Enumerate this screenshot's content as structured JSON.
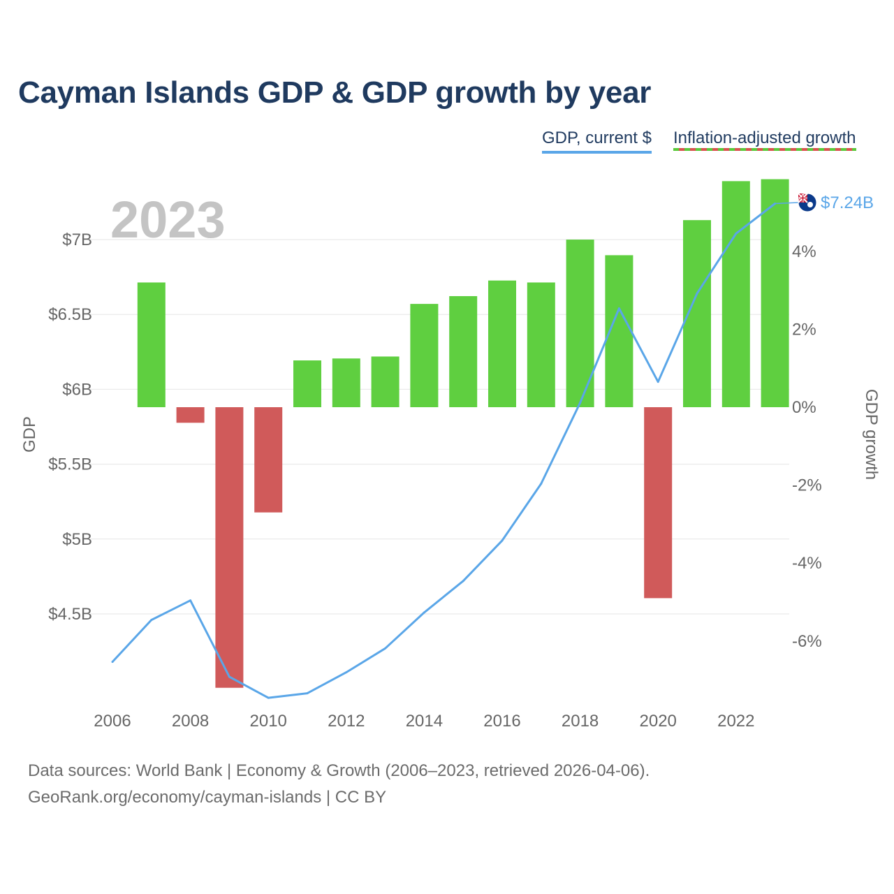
{
  "title": "Cayman Islands GDP & GDP growth by year",
  "legend": {
    "gdp": "GDP, current $",
    "growth": "Inflation-adjusted growth"
  },
  "colors": {
    "gdp_line": "#5aa6e8",
    "growth_positive": "#5fcf40",
    "growth_negative": "#d05a5a",
    "title": "#1f3a5f",
    "grid": "#e6e6e6",
    "year_watermark": "#c4c4c4"
  },
  "chart_data": {
    "type": "bar+line",
    "highlight_year": "2023",
    "years": [
      2006,
      2007,
      2008,
      2009,
      2010,
      2011,
      2012,
      2013,
      2014,
      2015,
      2016,
      2017,
      2018,
      2019,
      2020,
      2021,
      2022,
      2023
    ],
    "gdp_billions": [
      4.18,
      4.46,
      4.59,
      4.08,
      3.94,
      3.97,
      4.11,
      4.27,
      4.51,
      4.72,
      4.99,
      5.37,
      5.91,
      6.54,
      6.05,
      6.64,
      7.04,
      7.24
    ],
    "growth_percent": [
      null,
      3.2,
      -0.4,
      -7.2,
      -2.7,
      1.2,
      1.25,
      1.3,
      2.65,
      2.85,
      3.25,
      3.2,
      4.3,
      3.9,
      -4.9,
      4.8,
      5.8,
      5.85
    ],
    "end_label": "$7.24B",
    "flag_icon": "cayman-islands-flag-icon",
    "left_axis": {
      "title": "GDP",
      "ticks": [
        4.5,
        5,
        5.5,
        6,
        6.5,
        7
      ],
      "tick_labels": [
        "$4.5B",
        "$5B",
        "$5.5B",
        "$6B",
        "$6.5B",
        "$7B"
      ]
    },
    "right_axis": {
      "title": "GDP growth",
      "ticks": [
        -6,
        -4,
        -2,
        0,
        2,
        4
      ],
      "tick_labels": [
        "-6%",
        "-4%",
        "-2%",
        "0%",
        "2%",
        "4%"
      ]
    },
    "x_axis": {
      "ticks": [
        2006,
        2008,
        2010,
        2012,
        2014,
        2016,
        2018,
        2020,
        2022
      ],
      "tick_labels": [
        "2006",
        "2008",
        "2010",
        "2012",
        "2014",
        "2016",
        "2018",
        "2020",
        "2022"
      ]
    }
  },
  "source": {
    "line1": "Data sources: World Bank | Economy & Growth (2006–2023, retrieved 2026-04-06).",
    "line2": "GeoRank.org/economy/cayman-islands | CC BY"
  }
}
